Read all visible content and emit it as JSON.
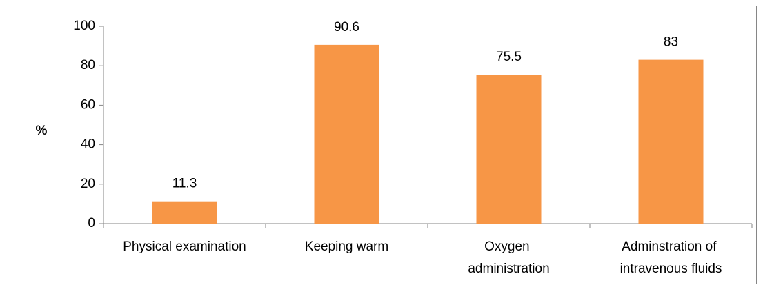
{
  "chart_data": {
    "type": "bar",
    "ylabel": "%",
    "categories": [
      "Physical examination",
      "Keeping warm",
      "Oxygen\nadministration",
      "Adminstration of\nintravenous fluids"
    ],
    "values": [
      11.3,
      90.6,
      75.5,
      83
    ],
    "color": "#f79646",
    "ylim": [
      0,
      100
    ],
    "yticks": [
      0,
      20,
      40,
      60,
      80,
      100
    ],
    "grid": false
  }
}
